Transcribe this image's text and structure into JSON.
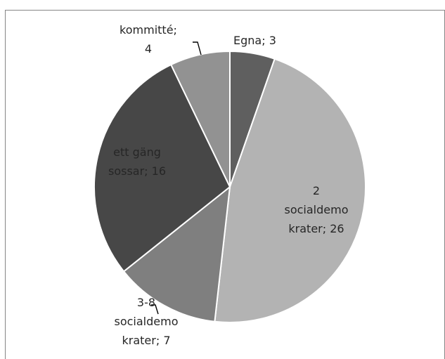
{
  "chart_data": {
    "type": "pie",
    "title": "",
    "categories": [
      "Egna",
      "2 socialdemokrater",
      "3-8 socialdemokrater",
      "ett gäng sossar",
      "kommitté"
    ],
    "values": [
      3,
      26,
      7,
      16,
      4
    ],
    "colors": [
      "#5f5f5f",
      "#b3b3b3",
      "#7f7f7f",
      "#474747",
      "#929292"
    ],
    "labels": [
      [
        "Egna; 3"
      ],
      [
        "2",
        "socialdemo",
        "krater; 26"
      ],
      [
        "3-8",
        "socialdemo",
        "krater; 7"
      ],
      [
        "ett gäng",
        "sossar; 16"
      ],
      [
        "kommitté;",
        "4"
      ]
    ],
    "legend": "none",
    "border_color": "#868686"
  }
}
